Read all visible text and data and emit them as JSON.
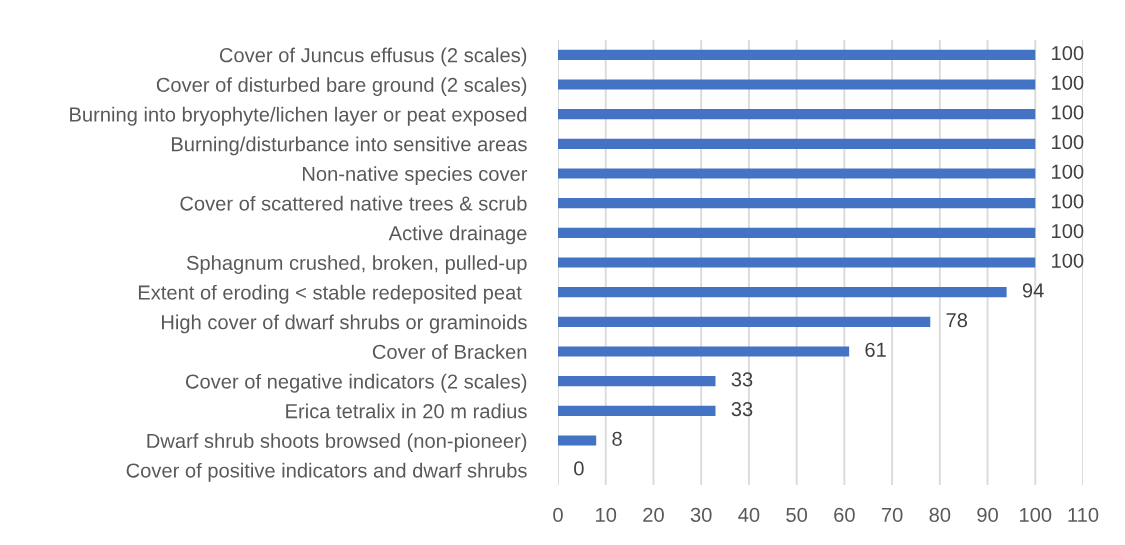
{
  "chart_data": {
    "type": "bar",
    "orientation": "horizontal",
    "categories": [
      "Cover of Juncus effusus (2 scales)",
      "Cover of disturbed bare ground (2 scales)",
      "Burning into bryophyte/lichen layer or peat exposed",
      "Burning/disturbance into sensitive areas",
      "Non-native species cover",
      "Cover of scattered native trees & scrub",
      "Active drainage",
      "Sphagnum crushed, broken, pulled-up",
      "Extent of eroding < stable redeposited peat ",
      "High cover of dwarf shrubs or graminoids",
      "Cover of Bracken",
      "Cover of negative indicators (2 scales)",
      "Erica tetralix in 20 m radius",
      "Dwarf shrub shoots browsed (non-pioneer)",
      "Cover of positive indicators and dwarf shrubs"
    ],
    "values": [
      100,
      100,
      100,
      100,
      100,
      100,
      100,
      100,
      94,
      78,
      61,
      33,
      33,
      8,
      0
    ],
    "color": "#4472c4",
    "xlim": [
      0,
      110
    ],
    "xticks": [
      0,
      10,
      20,
      30,
      40,
      50,
      60,
      70,
      80,
      90,
      100,
      110
    ],
    "grid": "x",
    "data_labels": true
  }
}
